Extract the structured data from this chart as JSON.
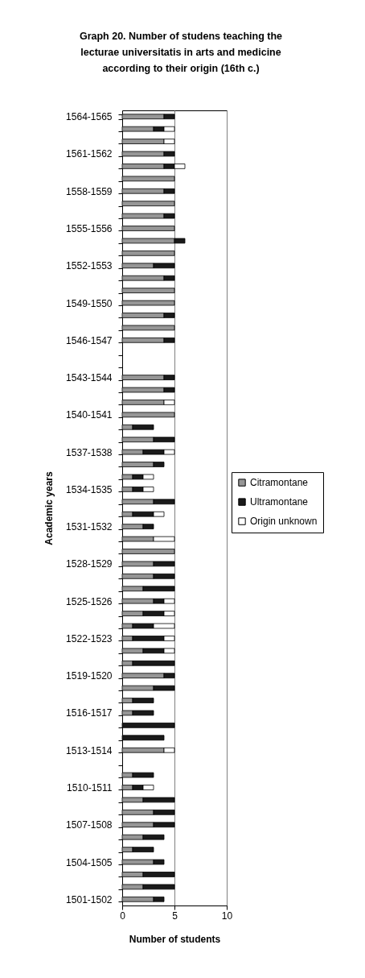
{
  "chart_data": {
    "type": "bar",
    "orientation": "horizontal",
    "stacked": true,
    "title": "Graph 20. Number of studens teaching the lecturae universitatis in arts and medicine according to their origin (16th c.)",
    "xlabel": "Number of students",
    "ylabel": "Academic years",
    "categories": [
      "1564-1565",
      null,
      null,
      "1561-1562",
      null,
      null,
      "1558-1559",
      null,
      null,
      "1555-1556",
      null,
      null,
      "1552-1553",
      null,
      null,
      "1549-1550",
      null,
      null,
      "1546-1547",
      null,
      null,
      "1543-1544",
      null,
      null,
      "1540-1541",
      null,
      null,
      "1537-1538",
      null,
      null,
      "1534-1535",
      null,
      null,
      "1531-1532",
      null,
      null,
      "1528-1529",
      null,
      null,
      "1525-1526",
      null,
      null,
      "1522-1523",
      null,
      null,
      "1519-1520",
      null,
      null,
      "1516-1517",
      null,
      null,
      "1513-1514",
      null,
      null,
      "1510-1511",
      null,
      null,
      "1507-1508",
      null,
      null,
      "1504-1505",
      null,
      null,
      "1501-1502"
    ],
    "series": [
      {
        "name": "Citramontane",
        "color": "#969696",
        "values": [
          4,
          3,
          4,
          4,
          4,
          5,
          4,
          5,
          4,
          5,
          5,
          5,
          3,
          4,
          5,
          5,
          4,
          5,
          4,
          0,
          0,
          4,
          4,
          4,
          5,
          1,
          3,
          2,
          3,
          1,
          1,
          3,
          1,
          2,
          3,
          5,
          3,
          3,
          2,
          3,
          2,
          1,
          1,
          2,
          1,
          4,
          3,
          1,
          1,
          0,
          0,
          4,
          0,
          1,
          1,
          2,
          3,
          3,
          2,
          1,
          3,
          2,
          2,
          3
        ]
      },
      {
        "name": "Ultramontane",
        "color": "#1a1a1a",
        "values": [
          1,
          1,
          0,
          1,
          1,
          0,
          1,
          0,
          1,
          0,
          1,
          0,
          2,
          1,
          0,
          0,
          1,
          0,
          1,
          0,
          0,
          1,
          1,
          0,
          0,
          2,
          2,
          2,
          1,
          1,
          1,
          2,
          2,
          1,
          0,
          0,
          2,
          2,
          3,
          1,
          2,
          2,
          3,
          2,
          4,
          1,
          2,
          2,
          2,
          5,
          4,
          0,
          0,
          2,
          1,
          3,
          2,
          2,
          2,
          2,
          1,
          3,
          3,
          1
        ]
      },
      {
        "name": "Origin unknown",
        "color": "#ffffff",
        "values": [
          0,
          1,
          1,
          0,
          1,
          0,
          0,
          0,
          0,
          0,
          0,
          0,
          0,
          0,
          0,
          0,
          0,
          0,
          0,
          0,
          0,
          0,
          0,
          1,
          0,
          0,
          0,
          1,
          0,
          1,
          1,
          0,
          1,
          0,
          2,
          0,
          0,
          0,
          0,
          1,
          1,
          2,
          1,
          1,
          0,
          0,
          0,
          0,
          0,
          0,
          0,
          1,
          0,
          0,
          1,
          0,
          0,
          0,
          0,
          0,
          0,
          0,
          0,
          0
        ]
      }
    ],
    "xlim": [
      0,
      10
    ],
    "xticks": [
      0,
      5,
      10
    ],
    "grid": "x",
    "legend": "right"
  }
}
